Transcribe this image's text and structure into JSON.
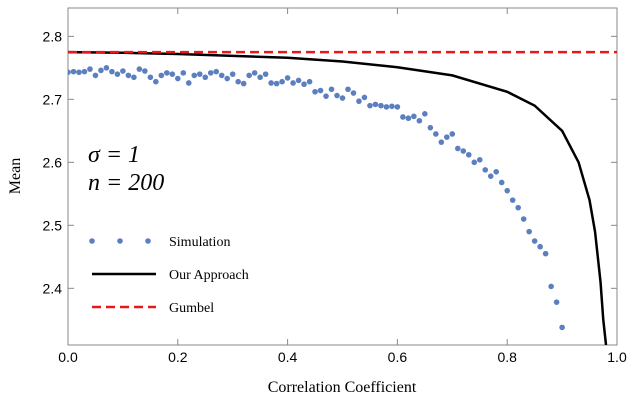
{
  "chart_data": {
    "type": "line",
    "xlabel": "Correlation Coefficient",
    "ylabel": "Mean",
    "annotations": [
      "σ = 1",
      "n = 200"
    ],
    "xlim": [
      0,
      1
    ],
    "ylim": [
      2.31,
      2.845
    ],
    "xticks": [
      {
        "value": 0,
        "label": "0.0"
      },
      {
        "value": 0.2,
        "label": "0.2"
      },
      {
        "value": 0.4,
        "label": "0.4"
      },
      {
        "value": 0.6,
        "label": "0.6"
      },
      {
        "value": 0.8,
        "label": "0.8"
      },
      {
        "value": 1,
        "label": "1.0"
      }
    ],
    "yticks": [
      2.4,
      2.5,
      2.6,
      2.7,
      2.8
    ],
    "legend": "left",
    "series": [
      {
        "name": "Simulation",
        "type": "scatter",
        "color": "#5b7fbf",
        "x": [
          0,
          0.01,
          0.02,
          0.03,
          0.04,
          0.05,
          0.06,
          0.07,
          0.08,
          0.09,
          0.1,
          0.11,
          0.12,
          0.13,
          0.14,
          0.15,
          0.16,
          0.17,
          0.18,
          0.19,
          0.2,
          0.21,
          0.22,
          0.23,
          0.24,
          0.25,
          0.26,
          0.27,
          0.28,
          0.29,
          0.3,
          0.31,
          0.32,
          0.33,
          0.34,
          0.35,
          0.36,
          0.37,
          0.38,
          0.39,
          0.4,
          0.41,
          0.42,
          0.43,
          0.44,
          0.45,
          0.46,
          0.47,
          0.48,
          0.49,
          0.5,
          0.51,
          0.52,
          0.53,
          0.54,
          0.55,
          0.56,
          0.57,
          0.58,
          0.59,
          0.6,
          0.61,
          0.62,
          0.63,
          0.64,
          0.65,
          0.66,
          0.67,
          0.68,
          0.69,
          0.7,
          0.71,
          0.72,
          0.73,
          0.74,
          0.75,
          0.76,
          0.77,
          0.78,
          0.79,
          0.8,
          0.81,
          0.82,
          0.83,
          0.84,
          0.85,
          0.86,
          0.87,
          0.88,
          0.89,
          0.9
        ],
        "values": [
          2.743,
          2.744,
          2.743,
          2.744,
          2.748,
          2.738,
          2.746,
          2.75,
          2.744,
          2.74,
          2.745,
          2.738,
          2.735,
          2.748,
          2.745,
          2.735,
          2.728,
          2.738,
          2.742,
          2.74,
          2.733,
          2.742,
          2.726,
          2.738,
          2.74,
          2.735,
          2.742,
          2.744,
          2.738,
          2.733,
          2.74,
          2.728,
          2.725,
          2.738,
          2.742,
          2.735,
          2.74,
          2.726,
          2.725,
          2.728,
          2.734,
          2.726,
          2.73,
          2.724,
          2.728,
          2.712,
          2.714,
          2.705,
          2.716,
          2.706,
          2.702,
          2.716,
          2.71,
          2.697,
          2.703,
          2.69,
          2.692,
          2.69,
          2.688,
          2.689,
          2.688,
          2.672,
          2.67,
          2.673,
          2.666,
          2.677,
          2.655,
          2.645,
          2.632,
          2.64,
          2.645,
          2.622,
          2.618,
          2.612,
          2.6,
          2.604,
          2.588,
          2.578,
          2.585,
          2.568,
          2.555,
          2.54,
          2.528,
          2.51,
          2.49,
          2.475,
          2.466,
          2.455,
          2.403,
          2.378,
          2.338
        ]
      },
      {
        "name": "Our Approach",
        "type": "line",
        "color": "#000000",
        "style": "solid",
        "x": [
          0,
          0.1,
          0.2,
          0.3,
          0.4,
          0.5,
          0.6,
          0.7,
          0.8,
          0.85,
          0.9,
          0.93,
          0.95,
          0.96,
          0.97,
          0.975,
          0.98
        ],
        "values": [
          2.775,
          2.774,
          2.772,
          2.769,
          2.766,
          2.76,
          2.751,
          2.738,
          2.712,
          2.69,
          2.65,
          2.6,
          2.54,
          2.49,
          2.41,
          2.35,
          2.31
        ]
      },
      {
        "name": "Gumbel",
        "type": "line",
        "color": "#e31a1c",
        "style": "dashed",
        "x": [
          0,
          1
        ],
        "values": [
          2.775,
          2.775
        ]
      }
    ]
  }
}
